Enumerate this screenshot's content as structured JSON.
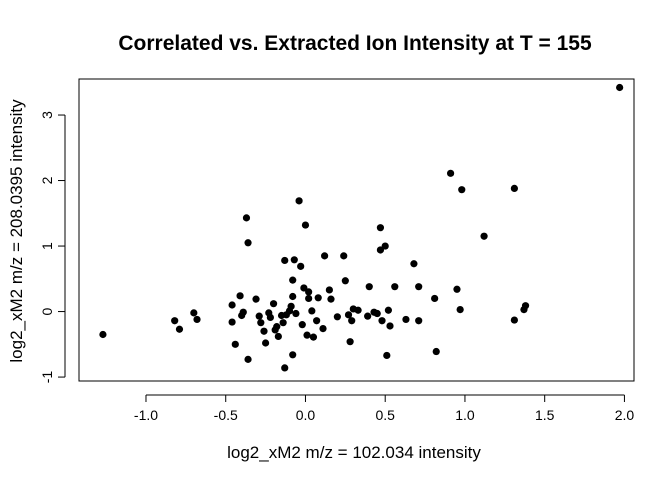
{
  "chart_data": {
    "type": "scatter",
    "title": "Correlated vs. Extracted Ion Intensity at T = 155",
    "xlabel": "log2_xM2 m/z = 102.034 intensity",
    "ylabel": "log2_xM2 m/z = 208.0395 intensity",
    "xlim": [
      -1.42,
      2.06
    ],
    "ylim": [
      -1.06,
      3.55
    ],
    "xticks": [
      -1.0,
      -0.5,
      0.0,
      0.5,
      1.0,
      1.5,
      2.0
    ],
    "xtick_labels": [
      "-1.0",
      "-0.5",
      "0.0",
      "0.5",
      "1.0",
      "1.5",
      "2.0"
    ],
    "yticks": [
      -1,
      0,
      1,
      2,
      3
    ],
    "ytick_labels": [
      "-1",
      "0",
      "1",
      "2",
      "3"
    ],
    "grid": false,
    "legend": "none",
    "marker_color": "#000000",
    "points": [
      [
        -1.27,
        -0.35
      ],
      [
        -0.82,
        -0.14
      ],
      [
        -0.79,
        -0.27
      ],
      [
        -0.7,
        -0.02
      ],
      [
        -0.68,
        -0.12
      ],
      [
        -0.46,
        0.1
      ],
      [
        -0.46,
        -0.16
      ],
      [
        -0.44,
        -0.5
      ],
      [
        -0.41,
        0.24
      ],
      [
        -0.4,
        -0.06
      ],
      [
        -0.39,
        -0.01
      ],
      [
        -0.37,
        1.43
      ],
      [
        -0.36,
        1.05
      ],
      [
        -0.36,
        -0.73
      ],
      [
        -0.31,
        0.19
      ],
      [
        -0.29,
        -0.07
      ],
      [
        -0.28,
        -0.17
      ],
      [
        -0.26,
        -0.3
      ],
      [
        -0.25,
        -0.48
      ],
      [
        -0.23,
        -0.02
      ],
      [
        -0.22,
        -0.09
      ],
      [
        -0.2,
        0.12
      ],
      [
        -0.19,
        -0.28
      ],
      [
        -0.18,
        -0.23
      ],
      [
        -0.17,
        -0.38
      ],
      [
        -0.15,
        -0.06
      ],
      [
        -0.14,
        -0.17
      ],
      [
        -0.13,
        -0.86
      ],
      [
        -0.13,
        0.78
      ],
      [
        -0.12,
        -0.05
      ],
      [
        -0.1,
        0.01
      ],
      [
        -0.09,
        0.08
      ],
      [
        -0.08,
        0.23
      ],
      [
        -0.08,
        0.48
      ],
      [
        -0.08,
        -0.66
      ],
      [
        -0.07,
        0.79
      ],
      [
        -0.06,
        -0.03
      ],
      [
        -0.04,
        1.69
      ],
      [
        -0.03,
        0.69
      ],
      [
        -0.02,
        -0.2
      ],
      [
        -0.01,
        0.36
      ],
      [
        0.0,
        1.32
      ],
      [
        0.01,
        -0.36
      ],
      [
        0.02,
        0.3
      ],
      [
        0.02,
        0.2
      ],
      [
        0.04,
        0.01
      ],
      [
        0.05,
        -0.39
      ],
      [
        0.07,
        -0.14
      ],
      [
        0.08,
        0.21
      ],
      [
        0.11,
        -0.26
      ],
      [
        0.12,
        0.85
      ],
      [
        0.15,
        0.33
      ],
      [
        0.16,
        0.19
      ],
      [
        0.2,
        -0.08
      ],
      [
        0.24,
        0.85
      ],
      [
        0.25,
        0.47
      ],
      [
        0.27,
        -0.05
      ],
      [
        0.28,
        -0.46
      ],
      [
        0.29,
        -0.14
      ],
      [
        0.3,
        0.04
      ],
      [
        0.33,
        0.02
      ],
      [
        0.39,
        -0.07
      ],
      [
        0.4,
        0.38
      ],
      [
        0.43,
        -0.01
      ],
      [
        0.45,
        -0.03
      ],
      [
        0.47,
        0.94
      ],
      [
        0.47,
        1.28
      ],
      [
        0.48,
        -0.14
      ],
      [
        0.5,
        1.0
      ],
      [
        0.51,
        -0.67
      ],
      [
        0.52,
        0.02
      ],
      [
        0.53,
        -0.22
      ],
      [
        0.56,
        0.38
      ],
      [
        0.63,
        -0.12
      ],
      [
        0.68,
        0.73
      ],
      [
        0.71,
        0.38
      ],
      [
        0.71,
        -0.14
      ],
      [
        0.81,
        0.2
      ],
      [
        0.82,
        -0.61
      ],
      [
        0.91,
        2.11
      ],
      [
        0.95,
        0.34
      ],
      [
        0.97,
        0.03
      ],
      [
        0.98,
        1.86
      ],
      [
        1.12,
        1.15
      ],
      [
        1.31,
        1.88
      ],
      [
        1.31,
        -0.13
      ],
      [
        1.37,
        0.03
      ],
      [
        1.38,
        0.09
      ],
      [
        1.97,
        3.42
      ]
    ]
  }
}
